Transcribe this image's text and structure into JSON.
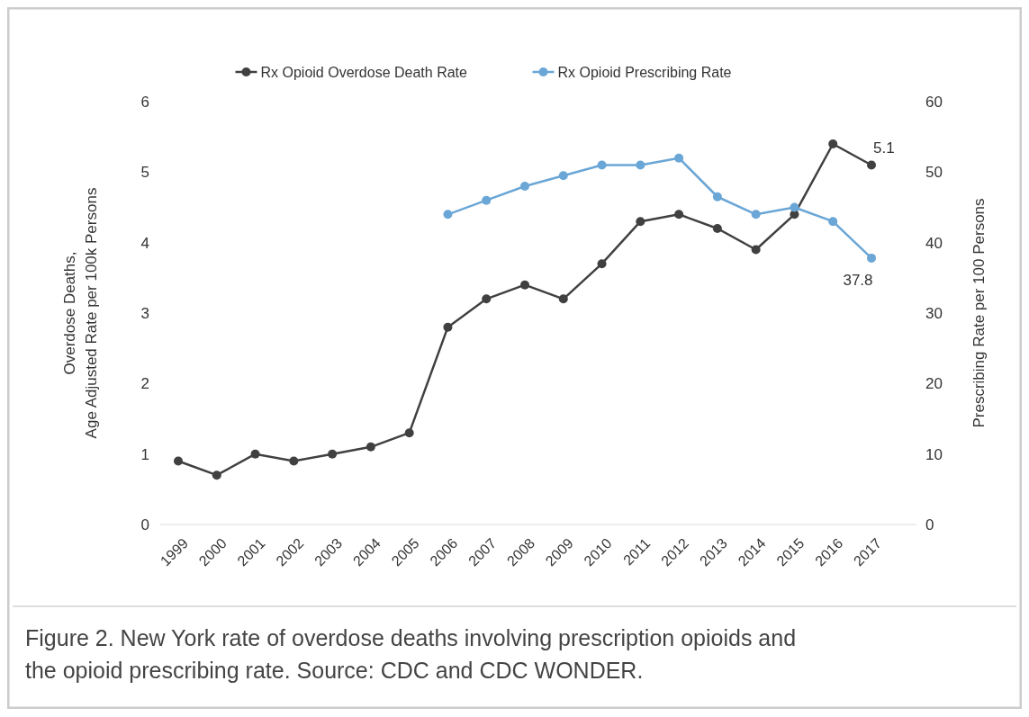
{
  "chart_data": {
    "type": "line",
    "categories": [
      "1999",
      "2000",
      "2001",
      "2002",
      "2003",
      "2004",
      "2005",
      "2006",
      "2007",
      "2008",
      "2009",
      "2010",
      "2011",
      "2012",
      "2013",
      "2014",
      "2015",
      "2016",
      "2017"
    ],
    "series": [
      {
        "name": "Rx Opioid Overdose Death Rate",
        "color": "#404040",
        "values": [
          0.9,
          0.7,
          1.0,
          0.9,
          1.0,
          1.1,
          1.3,
          2.8,
          3.2,
          3.4,
          3.2,
          3.7,
          4.3,
          4.4,
          4.2,
          3.9,
          4.4,
          5.4,
          5.1
        ],
        "value_labels": [
          null,
          null,
          null,
          null,
          null,
          null,
          null,
          null,
          null,
          null,
          null,
          null,
          null,
          null,
          null,
          null,
          null,
          null,
          "5.1"
        ]
      },
      {
        "name": "Rx Opioid Prescribing Rate",
        "color": "#6aa6d6",
        "axis": "y2",
        "values": [
          null,
          null,
          null,
          null,
          null,
          null,
          null,
          44,
          46,
          48,
          49.5,
          51,
          51,
          52,
          46.5,
          44,
          45,
          43,
          37.8
        ],
        "value_labels": [
          null,
          null,
          null,
          null,
          null,
          null,
          null,
          null,
          null,
          null,
          null,
          null,
          null,
          null,
          null,
          null,
          null,
          null,
          "37.8"
        ]
      }
    ],
    "ylabel": "Overdose Deaths,\nAge Adjusted Rate per 100k Persons",
    "y2label": "Prescribing Rate per 100 Persons",
    "ylim": [
      0,
      6
    ],
    "yticks": [
      0,
      1,
      2,
      3,
      4,
      5,
      6
    ],
    "y2lim": [
      0,
      60
    ],
    "y2ticks": [
      0,
      10,
      20,
      30,
      40,
      50,
      60
    ],
    "legend": "top",
    "marker": "circle",
    "line_style": "solid",
    "annotations": [
      "Figure 2. New York rate of overdose deaths involving prescription opioids and the opioid prescribing rate. Source: CDC and CDC WONDER."
    ]
  }
}
